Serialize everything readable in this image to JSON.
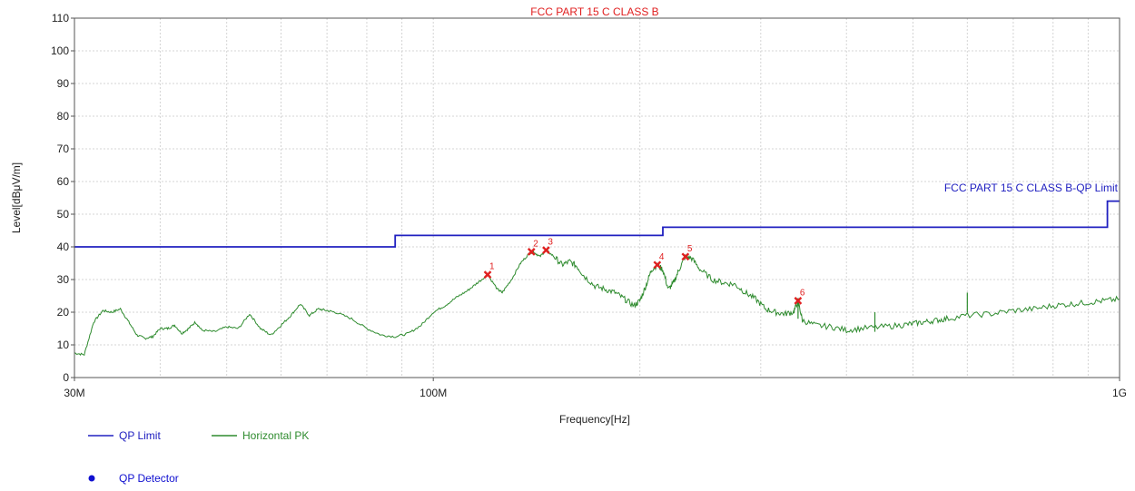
{
  "chart_data": {
    "type": "line",
    "title": "FCC PART 15 C CLASS B",
    "xlabel": "Frequency[Hz]",
    "ylabel": "Level[dBμV/m]",
    "x_scale": "log",
    "xlim": [
      30000000,
      1000000000
    ],
    "ylim": [
      0,
      110
    ],
    "grid": true,
    "x_tick_labels": [
      {
        "value": 30000000,
        "label": "30M"
      },
      {
        "value": 100000000,
        "label": "100M"
      },
      {
        "value": 1000000000,
        "label": "1G"
      }
    ],
    "y_ticks": [
      0,
      10,
      20,
      30,
      40,
      50,
      60,
      70,
      80,
      90,
      100,
      110
    ],
    "limit_label": "FCC PART 15 C CLASS B-QP Limit",
    "series": [
      {
        "name": "QP Limit",
        "color": "#2020c0",
        "points": [
          [
            30000000,
            40
          ],
          [
            88000000,
            40
          ],
          [
            88000000,
            43.5
          ],
          [
            216000000,
            43.5
          ],
          [
            216000000,
            46
          ],
          [
            960000000,
            46
          ],
          [
            960000000,
            54
          ],
          [
            1000000000,
            54
          ]
        ]
      },
      {
        "name": "Horizontal PK",
        "color": "#2e8b2e",
        "points": [
          [
            30000000,
            7.5
          ],
          [
            31000000,
            7
          ],
          [
            32000000,
            17
          ],
          [
            33000000,
            20.5
          ],
          [
            34000000,
            20
          ],
          [
            35000000,
            21
          ],
          [
            36000000,
            17
          ],
          [
            37000000,
            13
          ],
          [
            38000000,
            12
          ],
          [
            39000000,
            12.5
          ],
          [
            40000000,
            15
          ],
          [
            41000000,
            15
          ],
          [
            42000000,
            16
          ],
          [
            43000000,
            13.5
          ],
          [
            44000000,
            15
          ],
          [
            45000000,
            17
          ],
          [
            46000000,
            14.5
          ],
          [
            48000000,
            14
          ],
          [
            50000000,
            15.5
          ],
          [
            52000000,
            15
          ],
          [
            54000000,
            19.5
          ],
          [
            56000000,
            15
          ],
          [
            58000000,
            13
          ],
          [
            60000000,
            16
          ],
          [
            62000000,
            19
          ],
          [
            64000000,
            22.5
          ],
          [
            66000000,
            19
          ],
          [
            68000000,
            21
          ],
          [
            70000000,
            20.5
          ],
          [
            72000000,
            20
          ],
          [
            76000000,
            18
          ],
          [
            80000000,
            15
          ],
          [
            84000000,
            13
          ],
          [
            88000000,
            12.5
          ],
          [
            92000000,
            13.5
          ],
          [
            96000000,
            16
          ],
          [
            100000000,
            20
          ],
          [
            104000000,
            22
          ],
          [
            108000000,
            24.5
          ],
          [
            112000000,
            26.5
          ],
          [
            116000000,
            29
          ],
          [
            120000000,
            31.5
          ],
          [
            124000000,
            27
          ],
          [
            126000000,
            26
          ],
          [
            130000000,
            30
          ],
          [
            134000000,
            35
          ],
          [
            138000000,
            38
          ],
          [
            140000000,
            38.5
          ],
          [
            143000000,
            37
          ],
          [
            146000000,
            39
          ],
          [
            150000000,
            37
          ],
          [
            154000000,
            34.5
          ],
          [
            158000000,
            35.5
          ],
          [
            162000000,
            34
          ],
          [
            166000000,
            31
          ],
          [
            172000000,
            28
          ],
          [
            178000000,
            27
          ],
          [
            184000000,
            26
          ],
          [
            190000000,
            24
          ],
          [
            196000000,
            22
          ],
          [
            200000000,
            23.5
          ],
          [
            204000000,
            28
          ],
          [
            208000000,
            33
          ],
          [
            212000000,
            34.5
          ],
          [
            216000000,
            33
          ],
          [
            220000000,
            27
          ],
          [
            224000000,
            29
          ],
          [
            228000000,
            33
          ],
          [
            233000000,
            37
          ],
          [
            238000000,
            36.5
          ],
          [
            245000000,
            33
          ],
          [
            255000000,
            30
          ],
          [
            265000000,
            29
          ],
          [
            275000000,
            28.5
          ],
          [
            285000000,
            26
          ],
          [
            295000000,
            24
          ],
          [
            305000000,
            21
          ],
          [
            315000000,
            20
          ],
          [
            325000000,
            19.5
          ],
          [
            335000000,
            20
          ],
          [
            340000000,
            23.5
          ],
          [
            345000000,
            17.5
          ],
          [
            360000000,
            16
          ],
          [
            380000000,
            15.5
          ],
          [
            400000000,
            14.5
          ],
          [
            420000000,
            15
          ],
          [
            450000000,
            15.5
          ],
          [
            480000000,
            16
          ],
          [
            500000000,
            16.5
          ],
          [
            520000000,
            17
          ],
          [
            540000000,
            17.5
          ],
          [
            560000000,
            18
          ],
          [
            600000000,
            19
          ],
          [
            650000000,
            19.5
          ],
          [
            700000000,
            20.5
          ],
          [
            750000000,
            21
          ],
          [
            800000000,
            22
          ],
          [
            850000000,
            22.5
          ],
          [
            900000000,
            23
          ],
          [
            950000000,
            23.5
          ],
          [
            1000000000,
            24
          ]
        ]
      }
    ],
    "spikes": [
      {
        "x": 440000000,
        "y": 20
      },
      {
        "x": 600000000,
        "y": 26
      },
      {
        "x": 340000000,
        "y": 24
      }
    ],
    "qp_detector": {
      "name": "QP Detector",
      "color": "#1010d0",
      "points": [
        {
          "label": "1",
          "x": 120000000,
          "y": 31.5
        },
        {
          "label": "2",
          "x": 139000000,
          "y": 38.5
        },
        {
          "label": "3",
          "x": 146000000,
          "y": 39
        },
        {
          "label": "4",
          "x": 212000000,
          "y": 34.5
        },
        {
          "label": "5",
          "x": 233000000,
          "y": 37
        },
        {
          "label": "6",
          "x": 340000000,
          "y": 23.5
        }
      ]
    }
  }
}
